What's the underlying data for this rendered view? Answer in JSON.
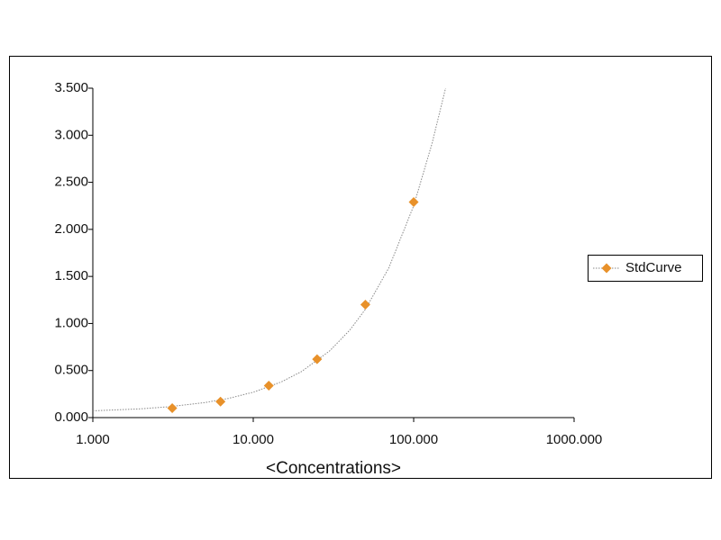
{
  "chart_data": {
    "type": "scatter",
    "x_label": "<Concentrations>",
    "xscale": "log",
    "xlim": [
      1,
      1000
    ],
    "xticks": [
      {
        "value": 1,
        "label": "1.000"
      },
      {
        "value": 10,
        "label": "10.000"
      },
      {
        "value": 100,
        "label": "100.000"
      },
      {
        "value": 1000,
        "label": "1000.000"
      }
    ],
    "ylim": [
      0,
      3.5
    ],
    "yticks": [
      {
        "value": 0,
        "label": "0.000"
      },
      {
        "value": 0.5,
        "label": "0.500"
      },
      {
        "value": 1,
        "label": "1.000"
      },
      {
        "value": 1.5,
        "label": "1.500"
      },
      {
        "value": 2,
        "label": "2.000"
      },
      {
        "value": 2.5,
        "label": "2.500"
      },
      {
        "value": 3,
        "label": "3.000"
      },
      {
        "value": 3.5,
        "label": "3.500"
      }
    ],
    "grid": false,
    "legend": "right",
    "series": [
      {
        "name": "StdCurve",
        "color": "#e8912a",
        "x": [
          3.125,
          6.25,
          12.5,
          25,
          50,
          100
        ],
        "values": [
          0.1,
          0.17,
          0.34,
          0.62,
          1.2,
          2.29
        ]
      }
    ],
    "curve": {
      "color": "#888888",
      "x": [
        1,
        2,
        3,
        5,
        7,
        10,
        15,
        20,
        30,
        40,
        50,
        70,
        100,
        130,
        158
      ],
      "values": [
        0.072,
        0.094,
        0.116,
        0.16,
        0.204,
        0.27,
        0.38,
        0.49,
        0.71,
        0.93,
        1.15,
        1.59,
        2.25,
        2.91,
        3.5
      ]
    }
  }
}
